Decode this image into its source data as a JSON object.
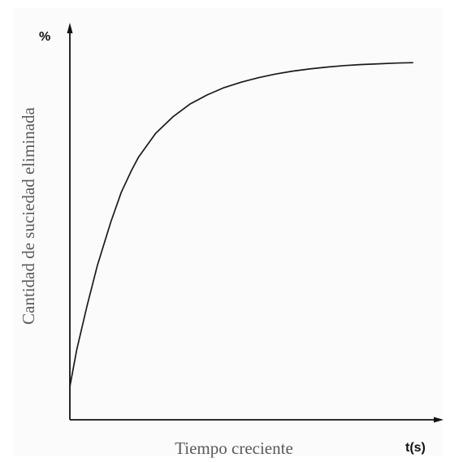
{
  "chart_data": {
    "type": "line",
    "title": "",
    "xlabel": "Tiempo creciente",
    "ylabel": "Cantidad de suciedad eliminada",
    "x_unit_label": "t(s)",
    "y_unit_label": "%",
    "xlim": [
      0,
      1
    ],
    "ylim": [
      0,
      1
    ],
    "grid": false,
    "series": [
      {
        "x": [
          0,
          0.02,
          0.05,
          0.08,
          0.1,
          0.12,
          0.15,
          0.18,
          0.2,
          0.25,
          0.3,
          0.35,
          0.4,
          0.45,
          0.5,
          0.55,
          0.6,
          0.65,
          0.7,
          0.75,
          0.8,
          0.85,
          0.9,
          0.95,
          1.0
        ],
        "y": [
          0.09,
          0.19,
          0.31,
          0.42,
          0.48,
          0.54,
          0.62,
          0.68,
          0.715,
          0.78,
          0.825,
          0.86,
          0.885,
          0.905,
          0.92,
          0.932,
          0.942,
          0.95,
          0.956,
          0.961,
          0.965,
          0.968,
          0.97,
          0.972,
          0.973
        ]
      }
    ],
    "colors": {
      "axis": "#111111",
      "line": "#1a1a1a",
      "label_text": "#5a5a5a"
    }
  }
}
